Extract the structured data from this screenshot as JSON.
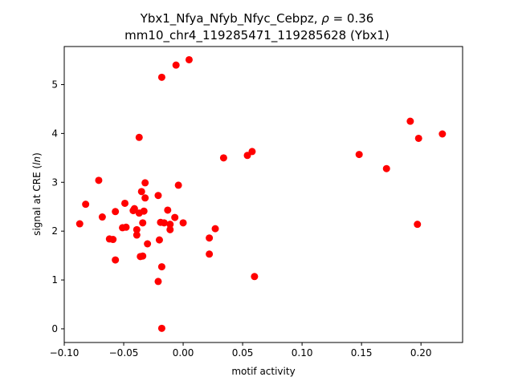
{
  "chart_data": {
    "type": "scatter",
    "title_line1_prefix": "Ybx1_Nfya_Nfyb_Nfyc_Cebpz, ",
    "title_rho_symbol": "ρ",
    "title_rho_suffix": " = 0.36",
    "title_line2": "mm10_chr4_119285471_119285628 (Ybx1)",
    "xlabel": "motif activity",
    "ylabel_prefix": "signal at CRE (",
    "ylabel_italic": "ln",
    "ylabel_suffix": ")",
    "xlim": [
      -0.1,
      0.235
    ],
    "ylim": [
      -0.28,
      5.78
    ],
    "xticks": [
      -0.1,
      -0.05,
      0.0,
      0.05,
      0.1,
      0.15,
      0.2
    ],
    "xtick_labels": [
      "−0.10",
      "−0.05",
      "0.00",
      "0.05",
      "0.10",
      "0.15",
      "0.20"
    ],
    "yticks": [
      0,
      1,
      2,
      3,
      4,
      5
    ],
    "ytick_labels": [
      "0",
      "1",
      "2",
      "3",
      "4",
      "5"
    ],
    "grid": false,
    "marker_color": "#ff0000",
    "points": [
      {
        "x": -0.087,
        "y": 2.15
      },
      {
        "x": -0.082,
        "y": 2.55
      },
      {
        "x": -0.071,
        "y": 3.04
      },
      {
        "x": -0.068,
        "y": 2.29
      },
      {
        "x": -0.062,
        "y": 1.84
      },
      {
        "x": -0.059,
        "y": 1.83
      },
      {
        "x": -0.057,
        "y": 2.4
      },
      {
        "x": -0.057,
        "y": 1.41
      },
      {
        "x": -0.051,
        "y": 2.07
      },
      {
        "x": -0.049,
        "y": 2.57
      },
      {
        "x": -0.048,
        "y": 2.08
      },
      {
        "x": -0.042,
        "y": 2.42
      },
      {
        "x": -0.041,
        "y": 2.46
      },
      {
        "x": -0.039,
        "y": 2.03
      },
      {
        "x": -0.039,
        "y": 1.92
      },
      {
        "x": -0.037,
        "y": 3.92
      },
      {
        "x": -0.037,
        "y": 2.37
      },
      {
        "x": -0.036,
        "y": 1.48
      },
      {
        "x": -0.035,
        "y": 2.81
      },
      {
        "x": -0.034,
        "y": 2.17
      },
      {
        "x": -0.034,
        "y": 1.49
      },
      {
        "x": -0.033,
        "y": 2.41
      },
      {
        "x": -0.032,
        "y": 2.99
      },
      {
        "x": -0.032,
        "y": 2.68
      },
      {
        "x": -0.03,
        "y": 1.74
      },
      {
        "x": -0.021,
        "y": 2.73
      },
      {
        "x": -0.021,
        "y": 0.97
      },
      {
        "x": -0.02,
        "y": 1.82
      },
      {
        "x": -0.019,
        "y": 2.18
      },
      {
        "x": -0.018,
        "y": 5.15
      },
      {
        "x": -0.018,
        "y": 1.27
      },
      {
        "x": -0.018,
        "y": 0.01
      },
      {
        "x": -0.016,
        "y": 2.17
      },
      {
        "x": -0.013,
        "y": 2.43
      },
      {
        "x": -0.011,
        "y": 2.14
      },
      {
        "x": -0.011,
        "y": 2.03
      },
      {
        "x": -0.007,
        "y": 2.28
      },
      {
        "x": -0.006,
        "y": 5.4
      },
      {
        "x": -0.004,
        "y": 2.94
      },
      {
        "x": 0.0,
        "y": 2.17
      },
      {
        "x": 0.005,
        "y": 5.51
      },
      {
        "x": 0.022,
        "y": 1.86
      },
      {
        "x": 0.022,
        "y": 1.53
      },
      {
        "x": 0.027,
        "y": 2.05
      },
      {
        "x": 0.034,
        "y": 3.5
      },
      {
        "x": 0.054,
        "y": 3.55
      },
      {
        "x": 0.058,
        "y": 3.63
      },
      {
        "x": 0.06,
        "y": 1.07
      },
      {
        "x": 0.148,
        "y": 3.57
      },
      {
        "x": 0.171,
        "y": 3.28
      },
      {
        "x": 0.191,
        "y": 4.25
      },
      {
        "x": 0.197,
        "y": 2.14
      },
      {
        "x": 0.198,
        "y": 3.9
      },
      {
        "x": 0.218,
        "y": 3.99
      }
    ]
  }
}
